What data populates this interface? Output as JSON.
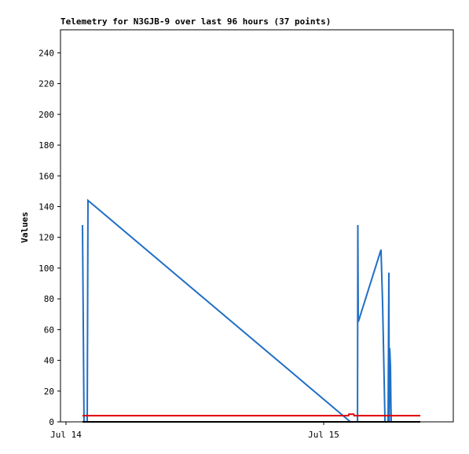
{
  "chart_data": {
    "type": "line",
    "title": "Telemetry for N3GJB-9 over last 96 hours (37 points)",
    "y_label": "Values",
    "xlim": [
      -0.51,
      36.07
    ],
    "xticks": [
      {
        "value": 0,
        "label": "Jul 14"
      },
      {
        "value": 24,
        "label": "Jul 15"
      }
    ],
    "ylim": [
      0,
      255
    ],
    "yticks": [
      0,
      20,
      40,
      60,
      80,
      100,
      120,
      140,
      160,
      180,
      200,
      220,
      240
    ],
    "grid": false,
    "series": [
      {
        "color": "#1f6fc5",
        "x": [
          1.54,
          1.61,
          1.68,
          1.98,
          2.05,
          26.49,
          27.15,
          27.18,
          27.22,
          29.34,
          29.49,
          29.56,
          29.63,
          29.71,
          30.0,
          30.07,
          30.1,
          30.15,
          30.22,
          30.26,
          30.29
        ],
        "values": [
          128,
          65,
          0,
          0,
          144,
          0,
          0,
          128,
          65,
          112,
          76,
          52,
          28,
          0,
          0,
          97,
          0,
          48,
          36,
          12,
          0
        ]
      },
      {
        "color": "#e00000",
        "x": [
          1.54,
          26.3,
          26.35,
          26.8,
          26.85,
          33.0
        ],
        "values": [
          4,
          4,
          5,
          5,
          4,
          4
        ]
      },
      {
        "color": "#000000",
        "x": [
          1.54,
          33.0
        ],
        "values": [
          0,
          0
        ]
      }
    ]
  }
}
